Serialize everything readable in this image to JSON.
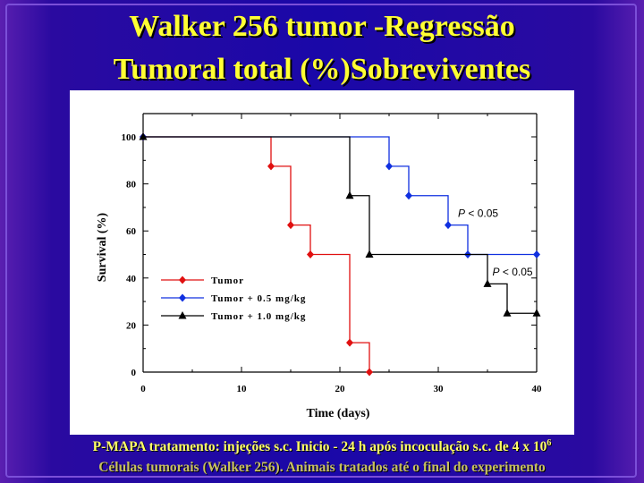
{
  "title_line1": "Walker 256 tumor -Regressão",
  "title_line2": "Tumoral total (%)Sobreviventes",
  "footer_line1": "P-MAPA tratamento: injeções s.c. Inicio - 24 h após incoculação s.c. de 4 x 10",
  "footer_line1_sup": "6",
  "footer_line2": "Células tumorais (Walker 256). Animais tratados até o final do experimento",
  "chart_data": {
    "type": "line",
    "step": true,
    "xlabel": "Time (days)",
    "ylabel": "Survival (%)",
    "xlim": [
      0,
      40
    ],
    "ylim": [
      0,
      100
    ],
    "x_ticks": [
      0,
      10,
      20,
      30,
      40
    ],
    "y_ticks": [
      0,
      20,
      40,
      60,
      80,
      100
    ],
    "grid": false,
    "legend_placement": "bottom-left",
    "series": [
      {
        "name": "Tumor",
        "color": "#e01010",
        "marker": "diamond",
        "points": [
          [
            0,
            100
          ],
          [
            13,
            87.5
          ],
          [
            15,
            62.5
          ],
          [
            17,
            50
          ],
          [
            21,
            12.5
          ],
          [
            23,
            0
          ]
        ]
      },
      {
        "name": "Tumor + 0.5 mg/kg",
        "color": "#1030e0",
        "marker": "diamond",
        "points": [
          [
            0,
            100
          ],
          [
            25,
            87.5
          ],
          [
            27,
            75
          ],
          [
            31,
            62.5
          ],
          [
            33,
            50
          ],
          [
            40,
            50
          ]
        ]
      },
      {
        "name": "Tumor + 1.0 mg/kg",
        "color": "#000000",
        "marker": "triangle",
        "points": [
          [
            0,
            100
          ],
          [
            21,
            75
          ],
          [
            23,
            50
          ],
          [
            35,
            37.5
          ],
          [
            37,
            25
          ],
          [
            40,
            25
          ]
        ]
      }
    ],
    "annotations": [
      {
        "text_italic": "P",
        "text": " < 0.05",
        "x": 32,
        "y": 66
      },
      {
        "text_italic": "P",
        "text": " < 0.05",
        "x": 35.5,
        "y": 41
      }
    ]
  }
}
